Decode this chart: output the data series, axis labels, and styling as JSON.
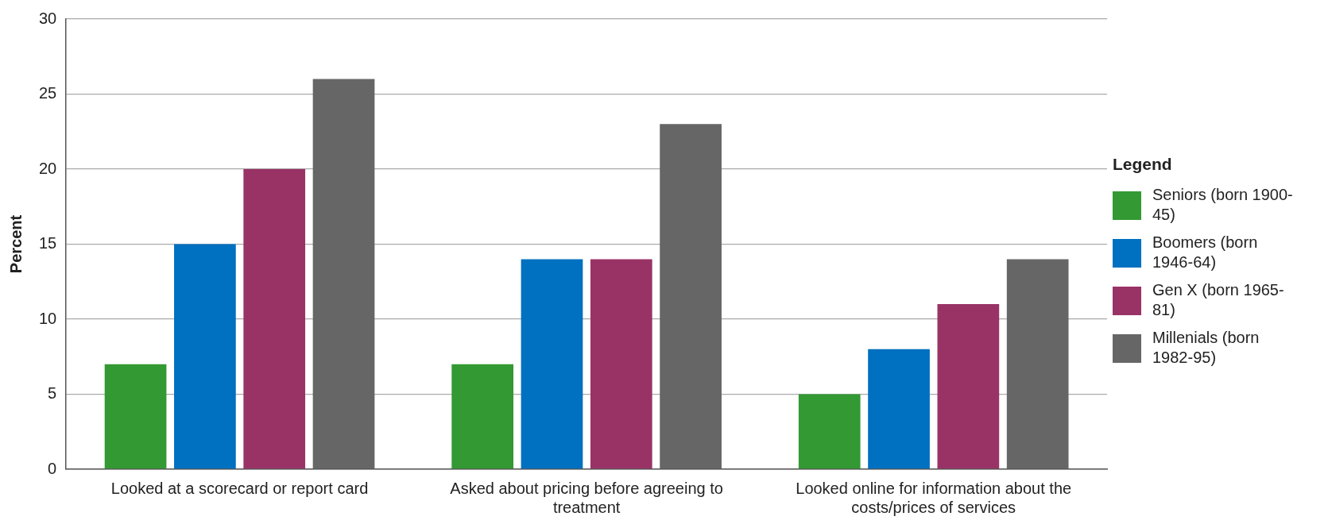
{
  "chart_data": {
    "type": "bar",
    "ylabel": "Percent",
    "legend_title": "Legend",
    "categories": [
      "Looked at a scorecard or report card",
      "Asked about pricing before agreeing to treatment",
      "Looked online for information about the costs/prices of services"
    ],
    "series": [
      {
        "name": "Seniors (born 1900-45)",
        "color": "#339933",
        "values": [
          7,
          7,
          5
        ]
      },
      {
        "name": "Boomers (born 1946-64)",
        "color": "#0070c0",
        "values": [
          15,
          14,
          8
        ]
      },
      {
        "name": "Gen X (born 1965-81)",
        "color": "#993366",
        "values": [
          20,
          14,
          11
        ]
      },
      {
        "name": "Millenials (born 1982-95)",
        "color": "#666666",
        "values": [
          26,
          23,
          14
        ]
      }
    ],
    "ylim": [
      0,
      30
    ],
    "yticks": [
      0,
      5,
      10,
      15,
      20,
      25,
      30
    ],
    "grid": "y",
    "legend": "right"
  }
}
